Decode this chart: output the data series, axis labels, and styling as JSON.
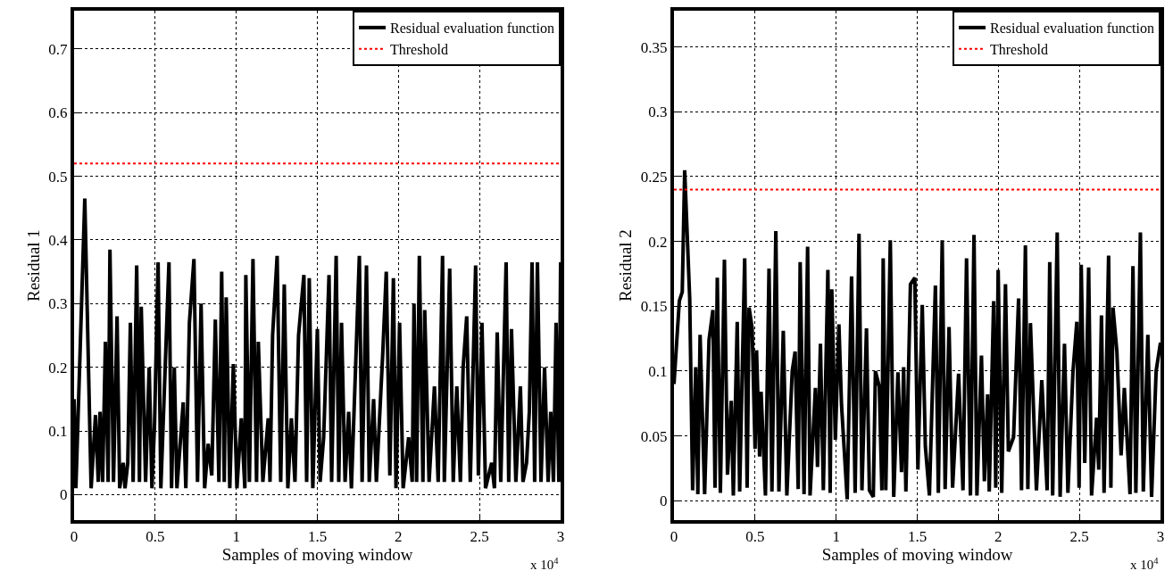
{
  "chart_data": [
    {
      "type": "line",
      "xlabel": "Samples of moving window",
      "ylabel": "Residual 1",
      "xlim": [
        0,
        3
      ],
      "xticks": [
        0,
        0.5,
        1,
        1.5,
        2,
        2.5,
        3
      ],
      "ylim": [
        -0.04,
        0.76
      ],
      "yticks": [
        0,
        0.1,
        0.2,
        0.3,
        0.4,
        0.5,
        0.6,
        0.7
      ],
      "grid": true,
      "legend": "top right",
      "line_style": "solid",
      "annotations": [
        "x 10$^{4}$"
      ],
      "ref_lines": [
        {
          "axis": "y",
          "value": 0.52,
          "label": "Threshold",
          "color": "#ff0000",
          "line_style": "dotted"
        }
      ],
      "series": [
        {
          "name": "Residual evaluation function",
          "color": "#000000",
          "x": [
            0,
            0.011,
            0.066,
            0.105,
            0.132,
            0.149,
            0.16,
            0.176,
            0.193,
            0.21,
            0.221,
            0.243,
            0.265,
            0.281,
            0.303,
            0.314,
            0.331,
            0.347,
            0.364,
            0.386,
            0.403,
            0.414,
            0.441,
            0.463,
            0.48,
            0.496,
            0.518,
            0.535,
            0.585,
            0.601,
            0.618,
            0.634,
            0.673,
            0.689,
            0.711,
            0.739,
            0.761,
            0.783,
            0.805,
            0.827,
            0.849,
            0.871,
            0.893,
            0.91,
            0.926,
            0.938,
            0.96,
            0.982,
            1.004,
            1.031,
            1.053,
            1.059,
            1.081,
            1.103,
            1.125,
            1.136,
            1.164,
            1.197,
            1.208,
            1.224,
            1.252,
            1.274,
            1.296,
            1.318,
            1.34,
            1.362,
            1.384,
            1.417,
            1.434,
            1.45,
            1.472,
            1.5,
            1.517,
            1.539,
            1.572,
            1.588,
            1.616,
            1.632,
            1.649,
            1.671,
            1.693,
            1.71,
            1.737,
            1.759,
            1.776,
            1.803,
            1.82,
            1.847,
            1.864,
            1.903,
            1.925,
            1.947,
            1.969,
            1.985,
            2.007,
            2.029,
            2.063,
            2.085,
            2.096,
            2.112,
            2.129,
            2.151,
            2.162,
            2.189,
            2.222,
            2.245,
            2.272,
            2.283,
            2.316,
            2.338,
            2.36,
            2.382,
            2.399,
            2.421,
            2.443,
            2.476,
            2.493,
            2.515,
            2.537,
            2.575,
            2.592,
            2.609,
            2.631,
            2.664,
            2.68,
            2.697,
            2.724,
            2.752,
            2.768,
            2.79,
            2.807,
            2.824,
            2.84,
            2.857,
            2.879,
            2.901,
            2.923,
            2.939,
            2.956,
            2.972,
            2.989,
            3.0
          ],
          "values": [
            0.15,
            0.01,
            0.465,
            0.01,
            0.125,
            0.02,
            0.13,
            0.02,
            0.24,
            0.02,
            0.385,
            0.02,
            0.28,
            0.01,
            0.05,
            0.01,
            0.05,
            0.27,
            0.02,
            0.36,
            0.02,
            0.295,
            0.02,
            0.2,
            0.01,
            0.11,
            0.365,
            0.01,
            0.365,
            0.01,
            0.2,
            0.01,
            0.145,
            0.01,
            0.27,
            0.37,
            0.02,
            0.3,
            0.01,
            0.08,
            0.03,
            0.275,
            0.02,
            0.35,
            0.02,
            0.31,
            0.01,
            0.205,
            0.01,
            0.12,
            0.01,
            0.345,
            0.02,
            0.37,
            0.02,
            0.24,
            0.02,
            0.12,
            0.02,
            0.25,
            0.375,
            0.02,
            0.33,
            0.01,
            0.12,
            0.02,
            0.25,
            0.345,
            0.02,
            0.34,
            0.01,
            0.26,
            0.02,
            0.09,
            0.345,
            0.02,
            0.375,
            0.02,
            0.27,
            0.02,
            0.13,
            0.01,
            0.21,
            0.375,
            0.02,
            0.36,
            0.02,
            0.15,
            0.02,
            0.22,
            0.35,
            0.03,
            0.34,
            0.01,
            0.27,
            0.01,
            0.09,
            0.02,
            0.3,
            0.02,
            0.375,
            0.02,
            0.29,
            0.02,
            0.17,
            0.02,
            0.375,
            0.02,
            0.355,
            0.02,
            0.17,
            0.02,
            0.2,
            0.28,
            0.02,
            0.36,
            0.03,
            0.27,
            0.01,
            0.05,
            0.01,
            0.255,
            0.02,
            0.365,
            0.02,
            0.26,
            0.02,
            0.17,
            0.02,
            0.05,
            0.13,
            0.365,
            0.02,
            0.365,
            0.02,
            0.2,
            0.02,
            0.13,
            0.02,
            0.27,
            0.02,
            0.365
          ]
        }
      ]
    },
    {
      "type": "line",
      "xlabel": "Samples of moving window",
      "ylabel": "Residual 2",
      "xlim": [
        0,
        3
      ],
      "xticks": [
        0,
        0.5,
        1,
        1.5,
        2,
        2.5,
        3
      ],
      "ylim": [
        -0.015,
        0.378
      ],
      "yticks": [
        0,
        0.05,
        0.1,
        0.15,
        0.2,
        0.25,
        0.3,
        0.35
      ],
      "grid": true,
      "legend": "top right",
      "line_style": "solid",
      "annotations": [
        "x 10$^{4}$"
      ],
      "ref_lines": [
        {
          "axis": "y",
          "value": 0.24,
          "label": "Threshold",
          "color": "#ff0000",
          "line_style": "dotted"
        }
      ],
      "series": [
        {
          "name": "Residual evaluation function",
          "color": "#000000",
          "x": [
            0,
            0.033,
            0.051,
            0.066,
            0.097,
            0.115,
            0.134,
            0.147,
            0.161,
            0.189,
            0.216,
            0.24,
            0.253,
            0.267,
            0.286,
            0.311,
            0.33,
            0.353,
            0.366,
            0.39,
            0.405,
            0.436,
            0.451,
            0.463,
            0.482,
            0.5,
            0.509,
            0.528,
            0.537,
            0.564,
            0.586,
            0.604,
            0.628,
            0.647,
            0.674,
            0.696,
            0.729,
            0.747,
            0.766,
            0.778,
            0.802,
            0.824,
            0.839,
            0.872,
            0.885,
            0.903,
            0.921,
            0.949,
            0.963,
            0.973,
            0.995,
            1.017,
            1.033,
            1.05,
            1.068,
            1.095,
            1.117,
            1.141,
            1.159,
            1.187,
            1.205,
            1.229,
            1.242,
            1.266,
            1.282,
            1.29,
            1.306,
            1.334,
            1.355,
            1.381,
            1.403,
            1.416,
            1.43,
            1.458,
            1.485,
            1.504,
            1.531,
            1.55,
            1.575,
            1.612,
            1.63,
            1.654,
            1.672,
            1.696,
            1.718,
            1.755,
            1.782,
            1.804,
            1.828,
            1.85,
            1.868,
            1.896,
            1.914,
            1.934,
            1.944,
            1.971,
            1.984,
            1.999,
            2.021,
            2.044,
            2.062,
            2.094,
            2.125,
            2.143,
            2.167,
            2.182,
            2.198,
            2.235,
            2.268,
            2.301,
            2.317,
            2.335,
            2.363,
            2.381,
            2.408,
            2.429,
            2.46,
            2.484,
            2.498,
            2.511,
            2.533,
            2.557,
            2.575,
            2.606,
            2.619,
            2.636,
            2.652,
            2.68,
            2.694,
            2.707,
            2.731,
            2.757,
            2.777,
            2.812,
            2.83,
            2.848,
            2.876,
            2.894,
            2.922,
            2.945,
            2.973,
            3.0
          ],
          "values": [
            0.09,
            0.154,
            0.161,
            0.255,
            0.156,
            0.008,
            0.103,
            0.005,
            0.128,
            0.005,
            0.124,
            0.147,
            0.01,
            0.172,
            0.006,
            0.186,
            0.02,
            0.077,
            0.004,
            0.138,
            0.007,
            0.187,
            0.01,
            0.149,
            0.133,
            0.04,
            0.116,
            0.034,
            0.084,
            0.004,
            0.179,
            0.007,
            0.208,
            0.007,
            0.131,
            0.004,
            0.1,
            0.115,
            0.009,
            0.184,
            0.005,
            0.196,
            0.004,
            0.087,
            0.026,
            0.121,
            0.008,
            0.178,
            0.006,
            0.163,
            0.047,
            0.136,
            0.074,
            0.039,
            0.001,
            0.173,
            0.006,
            0.206,
            0.008,
            0.133,
            0.008,
            0.003,
            0.1,
            0.088,
            0.008,
            0.187,
            0.008,
            0.201,
            0.003,
            0.099,
            0.022,
            0.103,
            0.007,
            0.167,
            0.172,
            0.024,
            0.151,
            0.042,
            0.004,
            0.166,
            0.006,
            0.201,
            0.009,
            0.134,
            0.01,
            0.098,
            0.008,
            0.187,
            0.004,
            0.205,
            0.004,
            0.112,
            0.015,
            0.082,
            0.007,
            0.154,
            0.01,
            0.178,
            0.006,
            0.167,
            0.038,
            0.049,
            0.156,
            0.008,
            0.197,
            0.009,
            0.137,
            0.008,
            0.093,
            0.008,
            0.184,
            0.004,
            0.207,
            0.003,
            0.121,
            0.006,
            0.099,
            0.138,
            0.01,
            0.182,
            0.029,
            0.18,
            0.004,
            0.064,
            0.024,
            0.143,
            0.006,
            0.189,
            0.01,
            0.149,
            0.115,
            0.035,
            0.087,
            0.005,
            0.181,
            0.006,
            0.207,
            0.007,
            0.128,
            0.003,
            0.1,
            0.122
          ]
        }
      ]
    }
  ]
}
